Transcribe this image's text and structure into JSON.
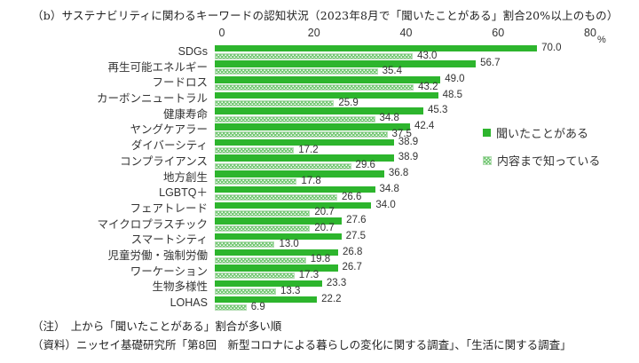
{
  "title": "（b）サステナビリティに関わるキーワードの認知状況（2023年8月で「聞いたことがある」割合20%以上のもの）",
  "axis": {
    "unit_label": "%"
  },
  "legend": {
    "series1_label": "聞いたことがある",
    "series2_label": "内容まで知っている"
  },
  "notes": {
    "note1": "（注）　上から「聞いたことがある」割合が多い順",
    "note2": "（資料）ニッセイ基礎研究所「第8回　新型コロナによる暮らしの変化に関する調査」、「生活に関する調査」"
  },
  "colors": {
    "bar_green": "#2db52d",
    "dot_green": "#76c876",
    "dot_border": "#b3dcb3",
    "text": "#333333"
  },
  "chart_data": {
    "type": "bar",
    "orientation": "horizontal",
    "title": "サステナビリティに関わるキーワードの認知状況",
    "xlabel": "%",
    "ylabel": "",
    "xlim": [
      0,
      80
    ],
    "xticks": [
      0,
      20,
      40,
      60,
      80
    ],
    "grid": false,
    "legend_position": "right",
    "categories": [
      "SDGs",
      "再生可能エネルギー",
      "フードロス",
      "カーボンニュートラル",
      "健康寿命",
      "ヤングケアラー",
      "ダイバーシティ",
      "コンプライアンス",
      "地方創生",
      "LGBTQ＋",
      "フェアトレード",
      "マイクロプラスチック",
      "スマートシティ",
      "児童労働・強制労働",
      "ワーケーション",
      "生物多様性",
      "LOHAS"
    ],
    "series": [
      {
        "name": "聞いたことがある",
        "style": "solid-green",
        "values": [
          70.0,
          56.7,
          49.0,
          48.5,
          45.3,
          42.4,
          38.9,
          38.9,
          36.8,
          34.8,
          34.0,
          27.6,
          27.5,
          26.8,
          26.7,
          23.3,
          22.2
        ]
      },
      {
        "name": "内容まで知っている",
        "style": "dotted-green-on-white",
        "values": [
          43.0,
          35.4,
          43.2,
          25.9,
          34.8,
          37.5,
          17.2,
          29.6,
          17.8,
          26.6,
          20.7,
          20.7,
          13.0,
          19.8,
          17.3,
          13.3,
          6.9
        ]
      }
    ]
  }
}
